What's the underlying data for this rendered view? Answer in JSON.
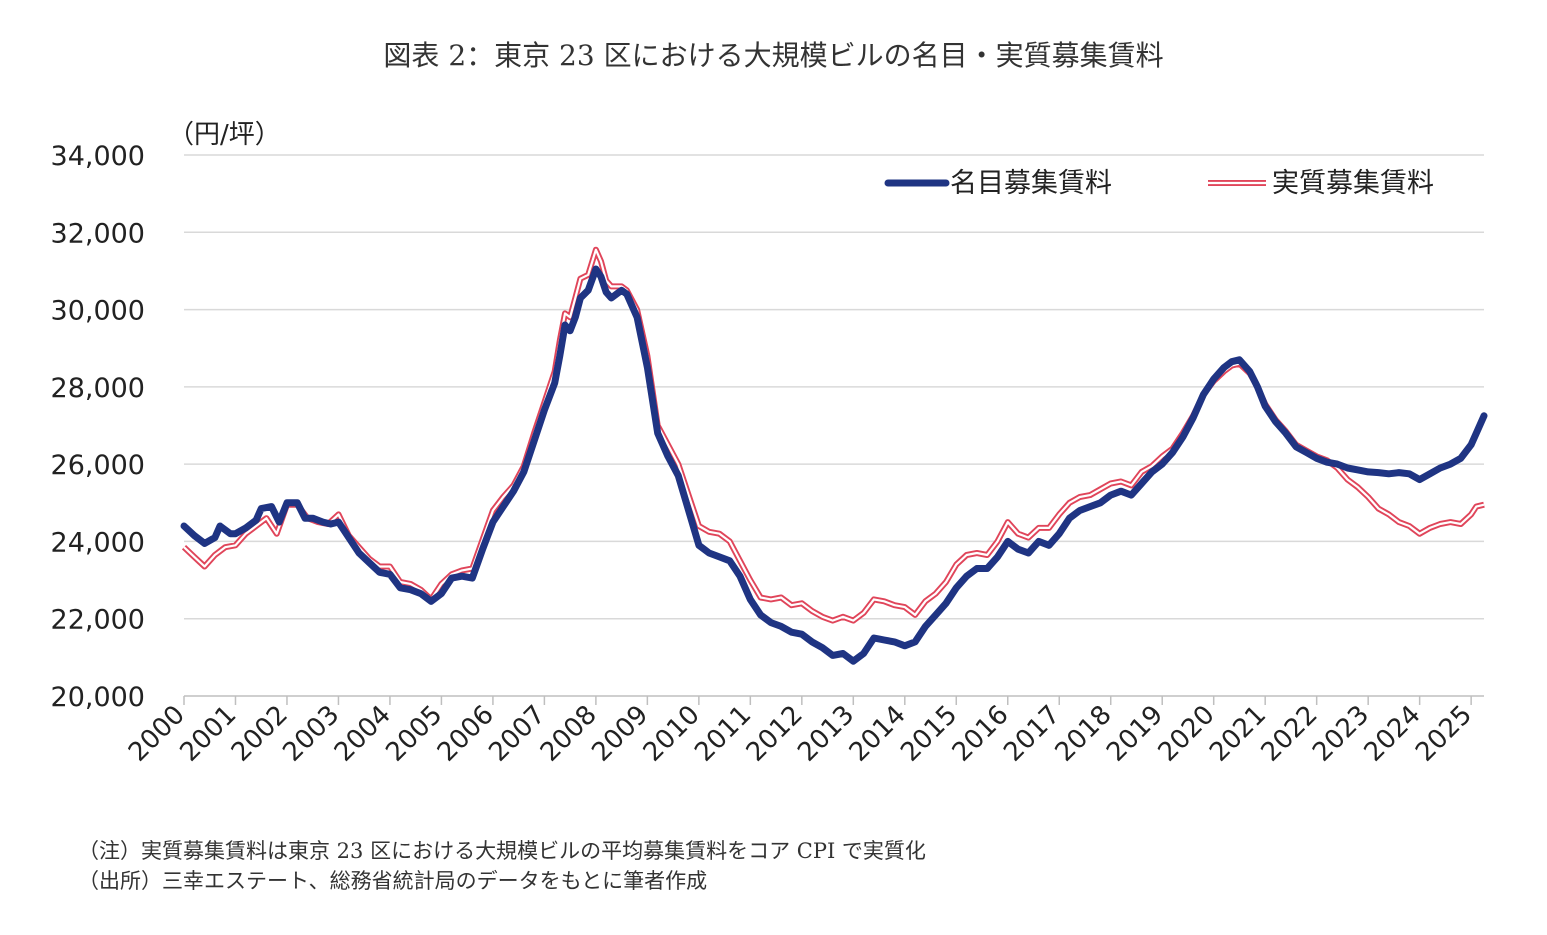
{
  "title": "図表 2：東京 23 区における大規模ビルの名目・実質募集賃料",
  "notes": [
    "（注）実質募集賃料は東京 23 区における大規模ビルの平均募集賃料をコア CPI で実質化",
    "（出所）三幸エステート、総務省統計局のデータをもとに筆者作成"
  ],
  "colors": {
    "nominal": "#1f3483",
    "real": "#e0455a",
    "grid": "#d9d9d9"
  },
  "chart_data": {
    "type": "line",
    "unit_label": "（円/坪）",
    "ylim": [
      20000,
      34000
    ],
    "yticks": [
      20000,
      22000,
      24000,
      26000,
      28000,
      30000,
      32000,
      34000
    ],
    "ytick_labels": [
      "20,000",
      "22,000",
      "24,000",
      "26,000",
      "28,000",
      "30,000",
      "32,000",
      "34,000"
    ],
    "xlim": [
      2000,
      2025.25
    ],
    "xticks": [
      "2000",
      "2001",
      "2002",
      "2003",
      "2004",
      "2005",
      "2006",
      "2007",
      "2008",
      "2009",
      "2010",
      "2011",
      "2012",
      "2013",
      "2014",
      "2015",
      "2016",
      "2017",
      "2018",
      "2019",
      "2020",
      "2021",
      "2022",
      "2023",
      "2024",
      "2025"
    ],
    "grid": true,
    "legend_position": "top-right",
    "series": [
      {
        "name": "名目募集賃料",
        "style": "solid-thick",
        "points": [
          [
            2000.0,
            24400
          ],
          [
            2000.2,
            24150
          ],
          [
            2000.4,
            23950
          ],
          [
            2000.6,
            24100
          ],
          [
            2000.7,
            24400
          ],
          [
            2000.9,
            24200
          ],
          [
            2001.0,
            24200
          ],
          [
            2001.2,
            24350
          ],
          [
            2001.4,
            24550
          ],
          [
            2001.5,
            24850
          ],
          [
            2001.7,
            24900
          ],
          [
            2001.85,
            24500
          ],
          [
            2002.0,
            25000
          ],
          [
            2002.2,
            25000
          ],
          [
            2002.35,
            24600
          ],
          [
            2002.5,
            24600
          ],
          [
            2002.7,
            24500
          ],
          [
            2002.85,
            24450
          ],
          [
            2003.0,
            24500
          ],
          [
            2003.2,
            24100
          ],
          [
            2003.4,
            23700
          ],
          [
            2003.6,
            23450
          ],
          [
            2003.8,
            23200
          ],
          [
            2004.0,
            23150
          ],
          [
            2004.2,
            22800
          ],
          [
            2004.4,
            22750
          ],
          [
            2004.6,
            22650
          ],
          [
            2004.8,
            22450
          ],
          [
            2005.0,
            22650
          ],
          [
            2005.2,
            23050
          ],
          [
            2005.4,
            23100
          ],
          [
            2005.6,
            23050
          ],
          [
            2005.8,
            23800
          ],
          [
            2006.0,
            24500
          ],
          [
            2006.2,
            24900
          ],
          [
            2006.4,
            25300
          ],
          [
            2006.6,
            25800
          ],
          [
            2006.8,
            26600
          ],
          [
            2007.0,
            27400
          ],
          [
            2007.2,
            28100
          ],
          [
            2007.3,
            28800
          ],
          [
            2007.4,
            29600
          ],
          [
            2007.5,
            29450
          ],
          [
            2007.6,
            29800
          ],
          [
            2007.7,
            30300
          ],
          [
            2007.85,
            30500
          ],
          [
            2008.0,
            31050
          ],
          [
            2008.1,
            30850
          ],
          [
            2008.2,
            30450
          ],
          [
            2008.3,
            30300
          ],
          [
            2008.4,
            30400
          ],
          [
            2008.5,
            30500
          ],
          [
            2008.6,
            30400
          ],
          [
            2008.8,
            29800
          ],
          [
            2009.0,
            28500
          ],
          [
            2009.2,
            26800
          ],
          [
            2009.4,
            26200
          ],
          [
            2009.6,
            25700
          ],
          [
            2009.8,
            24800
          ],
          [
            2010.0,
            23900
          ],
          [
            2010.2,
            23700
          ],
          [
            2010.4,
            23600
          ],
          [
            2010.6,
            23500
          ],
          [
            2010.8,
            23100
          ],
          [
            2011.0,
            22500
          ],
          [
            2011.2,
            22100
          ],
          [
            2011.4,
            21900
          ],
          [
            2011.6,
            21800
          ],
          [
            2011.8,
            21650
          ],
          [
            2012.0,
            21600
          ],
          [
            2012.2,
            21400
          ],
          [
            2012.4,
            21250
          ],
          [
            2012.6,
            21050
          ],
          [
            2012.8,
            21100
          ],
          [
            2013.0,
            20900
          ],
          [
            2013.2,
            21100
          ],
          [
            2013.4,
            21500
          ],
          [
            2013.6,
            21450
          ],
          [
            2013.8,
            21400
          ],
          [
            2014.0,
            21300
          ],
          [
            2014.2,
            21400
          ],
          [
            2014.4,
            21800
          ],
          [
            2014.6,
            22100
          ],
          [
            2014.8,
            22400
          ],
          [
            2015.0,
            22800
          ],
          [
            2015.2,
            23100
          ],
          [
            2015.4,
            23300
          ],
          [
            2015.6,
            23300
          ],
          [
            2015.8,
            23600
          ],
          [
            2016.0,
            24000
          ],
          [
            2016.2,
            23800
          ],
          [
            2016.4,
            23700
          ],
          [
            2016.6,
            24000
          ],
          [
            2016.8,
            23900
          ],
          [
            2017.0,
            24200
          ],
          [
            2017.2,
            24600
          ],
          [
            2017.4,
            24800
          ],
          [
            2017.6,
            24900
          ],
          [
            2017.8,
            25000
          ],
          [
            2018.0,
            25200
          ],
          [
            2018.2,
            25300
          ],
          [
            2018.4,
            25200
          ],
          [
            2018.6,
            25500
          ],
          [
            2018.8,
            25800
          ],
          [
            2019.0,
            26000
          ],
          [
            2019.2,
            26300
          ],
          [
            2019.4,
            26700
          ],
          [
            2019.6,
            27200
          ],
          [
            2019.8,
            27800
          ],
          [
            2020.0,
            28200
          ],
          [
            2020.2,
            28500
          ],
          [
            2020.35,
            28650
          ],
          [
            2020.5,
            28700
          ],
          [
            2020.7,
            28400
          ],
          [
            2020.85,
            28000
          ],
          [
            2021.0,
            27500
          ],
          [
            2021.2,
            27100
          ],
          [
            2021.4,
            26800
          ],
          [
            2021.6,
            26450
          ],
          [
            2021.8,
            26300
          ],
          [
            2022.0,
            26150
          ],
          [
            2022.2,
            26050
          ],
          [
            2022.4,
            26000
          ],
          [
            2022.6,
            25900
          ],
          [
            2022.8,
            25850
          ],
          [
            2023.0,
            25800
          ],
          [
            2023.2,
            25780
          ],
          [
            2023.4,
            25750
          ],
          [
            2023.6,
            25780
          ],
          [
            2023.8,
            25750
          ],
          [
            2024.0,
            25600
          ],
          [
            2024.2,
            25750
          ],
          [
            2024.4,
            25900
          ],
          [
            2024.6,
            26000
          ],
          [
            2024.8,
            26150
          ],
          [
            2025.0,
            26500
          ],
          [
            2025.1,
            26800
          ],
          [
            2025.25,
            27250
          ]
        ]
      },
      {
        "name": "実質募集賃料",
        "style": "double-line",
        "points": [
          [
            2000.0,
            23850
          ],
          [
            2000.2,
            23600
          ],
          [
            2000.4,
            23350
          ],
          [
            2000.6,
            23650
          ],
          [
            2000.8,
            23850
          ],
          [
            2001.0,
            23900
          ],
          [
            2001.2,
            24200
          ],
          [
            2001.4,
            24400
          ],
          [
            2001.6,
            24600
          ],
          [
            2001.8,
            24200
          ],
          [
            2002.0,
            24950
          ],
          [
            2002.2,
            24950
          ],
          [
            2002.4,
            24600
          ],
          [
            2002.6,
            24500
          ],
          [
            2002.8,
            24450
          ],
          [
            2003.0,
            24700
          ],
          [
            2003.2,
            24150
          ],
          [
            2003.4,
            23850
          ],
          [
            2003.6,
            23550
          ],
          [
            2003.8,
            23350
          ],
          [
            2004.0,
            23350
          ],
          [
            2004.2,
            22950
          ],
          [
            2004.4,
            22900
          ],
          [
            2004.6,
            22750
          ],
          [
            2004.8,
            22500
          ],
          [
            2005.0,
            22900
          ],
          [
            2005.2,
            23150
          ],
          [
            2005.4,
            23250
          ],
          [
            2005.6,
            23300
          ],
          [
            2005.8,
            24050
          ],
          [
            2006.0,
            24800
          ],
          [
            2006.2,
            25150
          ],
          [
            2006.4,
            25450
          ],
          [
            2006.6,
            25950
          ],
          [
            2006.8,
            26800
          ],
          [
            2007.0,
            27600
          ],
          [
            2007.2,
            28400
          ],
          [
            2007.3,
            29200
          ],
          [
            2007.4,
            29900
          ],
          [
            2007.5,
            29800
          ],
          [
            2007.6,
            30300
          ],
          [
            2007.7,
            30800
          ],
          [
            2007.85,
            30900
          ],
          [
            2008.0,
            31550
          ],
          [
            2008.1,
            31250
          ],
          [
            2008.2,
            30750
          ],
          [
            2008.3,
            30600
          ],
          [
            2008.4,
            30600
          ],
          [
            2008.5,
            30600
          ],
          [
            2008.6,
            30500
          ],
          [
            2008.8,
            30000
          ],
          [
            2009.0,
            28800
          ],
          [
            2009.2,
            27000
          ],
          [
            2009.4,
            26500
          ],
          [
            2009.6,
            26000
          ],
          [
            2009.8,
            25200
          ],
          [
            2010.0,
            24400
          ],
          [
            2010.2,
            24250
          ],
          [
            2010.4,
            24200
          ],
          [
            2010.6,
            24000
          ],
          [
            2010.8,
            23500
          ],
          [
            2011.0,
            23000
          ],
          [
            2011.2,
            22550
          ],
          [
            2011.4,
            22500
          ],
          [
            2011.6,
            22550
          ],
          [
            2011.8,
            22350
          ],
          [
            2012.0,
            22400
          ],
          [
            2012.2,
            22200
          ],
          [
            2012.4,
            22050
          ],
          [
            2012.6,
            21950
          ],
          [
            2012.8,
            22050
          ],
          [
            2013.0,
            21950
          ],
          [
            2013.2,
            22150
          ],
          [
            2013.4,
            22500
          ],
          [
            2013.6,
            22450
          ],
          [
            2013.8,
            22350
          ],
          [
            2014.0,
            22300
          ],
          [
            2014.2,
            22100
          ],
          [
            2014.4,
            22450
          ],
          [
            2014.6,
            22650
          ],
          [
            2014.8,
            22950
          ],
          [
            2015.0,
            23400
          ],
          [
            2015.2,
            23650
          ],
          [
            2015.4,
            23700
          ],
          [
            2015.6,
            23650
          ],
          [
            2015.8,
            24000
          ],
          [
            2016.0,
            24500
          ],
          [
            2016.2,
            24200
          ],
          [
            2016.4,
            24100
          ],
          [
            2016.6,
            24350
          ],
          [
            2016.8,
            24350
          ],
          [
            2017.0,
            24700
          ],
          [
            2017.2,
            25000
          ],
          [
            2017.4,
            25150
          ],
          [
            2017.6,
            25200
          ],
          [
            2017.8,
            25350
          ],
          [
            2018.0,
            25500
          ],
          [
            2018.2,
            25550
          ],
          [
            2018.4,
            25450
          ],
          [
            2018.6,
            25800
          ],
          [
            2018.8,
            25950
          ],
          [
            2019.0,
            26200
          ],
          [
            2019.2,
            26400
          ],
          [
            2019.4,
            26800
          ],
          [
            2019.6,
            27250
          ],
          [
            2019.8,
            27800
          ],
          [
            2020.0,
            28150
          ],
          [
            2020.2,
            28400
          ],
          [
            2020.35,
            28550
          ],
          [
            2020.5,
            28600
          ],
          [
            2020.7,
            28350
          ],
          [
            2020.85,
            28000
          ],
          [
            2021.0,
            27550
          ],
          [
            2021.2,
            27150
          ],
          [
            2021.4,
            26850
          ],
          [
            2021.6,
            26500
          ],
          [
            2021.8,
            26350
          ],
          [
            2022.0,
            26200
          ],
          [
            2022.2,
            26100
          ],
          [
            2022.4,
            25900
          ],
          [
            2022.6,
            25600
          ],
          [
            2022.8,
            25400
          ],
          [
            2023.0,
            25150
          ],
          [
            2023.2,
            24850
          ],
          [
            2023.4,
            24700
          ],
          [
            2023.6,
            24500
          ],
          [
            2023.8,
            24400
          ],
          [
            2024.0,
            24200
          ],
          [
            2024.2,
            24350
          ],
          [
            2024.4,
            24450
          ],
          [
            2024.6,
            24500
          ],
          [
            2024.8,
            24450
          ],
          [
            2025.0,
            24700
          ],
          [
            2025.1,
            24900
          ],
          [
            2025.25,
            24950
          ]
        ]
      }
    ]
  }
}
